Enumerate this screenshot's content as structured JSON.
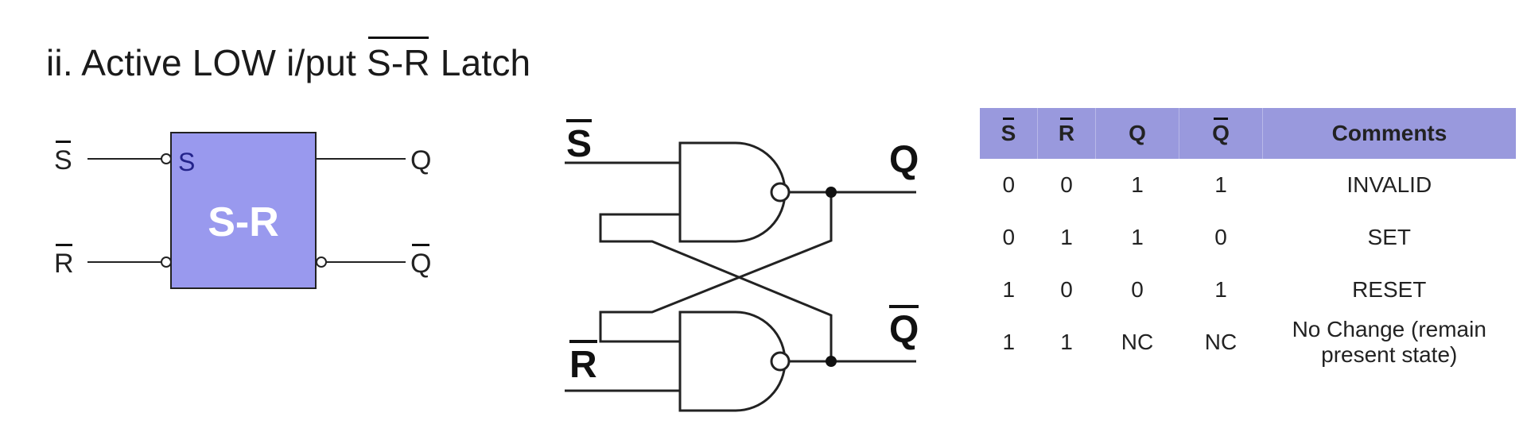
{
  "heading": {
    "prefix": "ii. Active LOW i/put ",
    "overlined": "S-R",
    "suffix": " Latch"
  },
  "block_symbol": {
    "box_label": "S-R",
    "box_input_label": "S",
    "box_color": "#9999ee",
    "pin_s": "S",
    "pin_r": "R",
    "pin_q": "Q",
    "pin_qbar": "Q"
  },
  "gate_diagram": {
    "input_s": "S",
    "input_r": "R",
    "output_q": "Q",
    "output_qbar": "Q"
  },
  "truth_table": {
    "header_color": "#9999dd",
    "columns": [
      "S",
      "R",
      "Q",
      "Q",
      "Comments"
    ],
    "rows": [
      [
        "0",
        "0",
        "1",
        "1",
        "INVALID"
      ],
      [
        "0",
        "1",
        "1",
        "0",
        "SET"
      ],
      [
        "1",
        "0",
        "0",
        "1",
        "RESET"
      ],
      [
        "1",
        "1",
        "NC",
        "NC",
        "No Change (remain present state)"
      ]
    ]
  }
}
